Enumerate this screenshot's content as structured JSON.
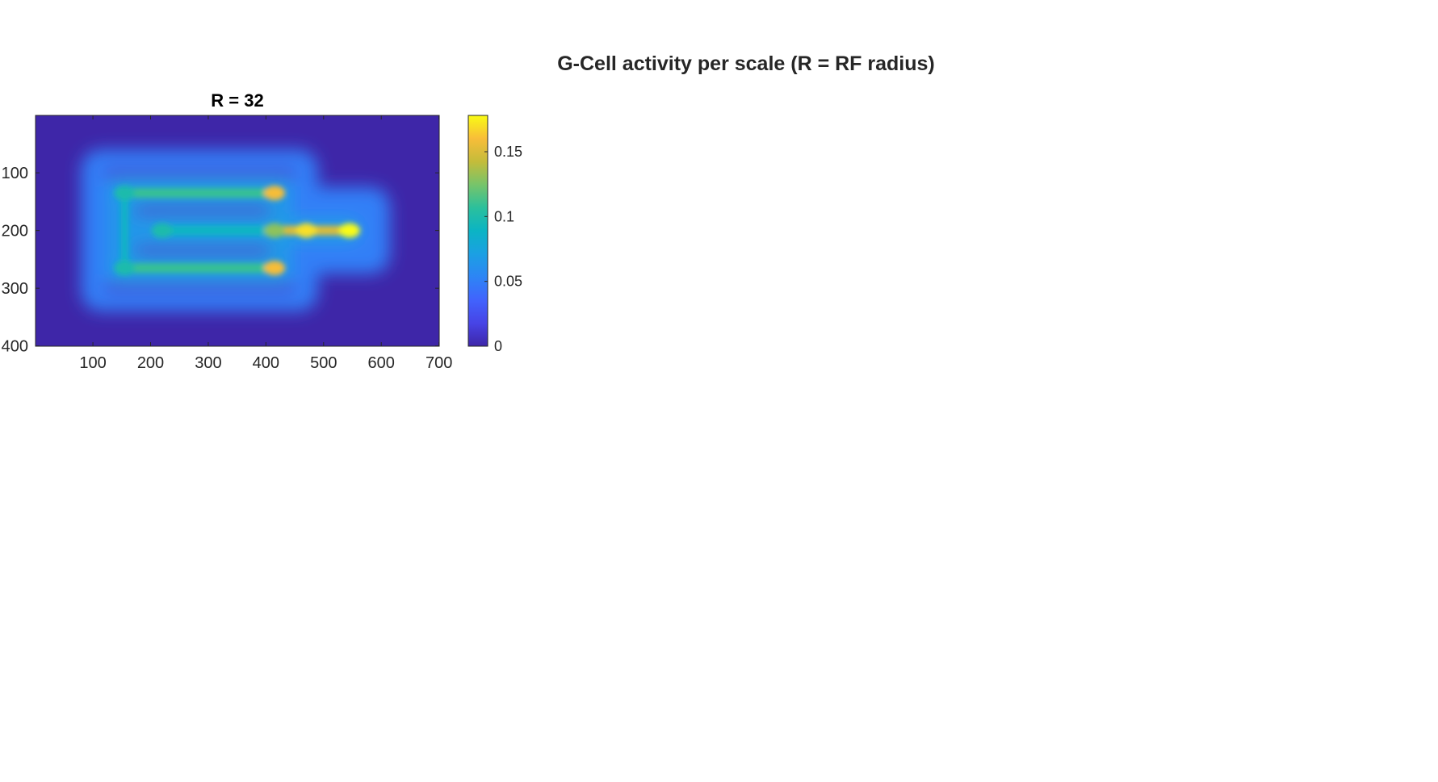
{
  "supertitle": "G-Cell activity per scale (R = RF radius)",
  "chart_data": {
    "type": "heatmap",
    "title": "R = 32",
    "xlabel": "",
    "ylabel": "",
    "xlim": [
      0.5,
      700.5
    ],
    "ylim": [
      0.5,
      400.5
    ],
    "y_reversed": true,
    "xticks": [
      100,
      200,
      300,
      400,
      500,
      600,
      700
    ],
    "yticks": [
      100,
      200,
      300,
      400
    ],
    "xtick_labels": [
      "100",
      "200",
      "300",
      "400",
      "500",
      "600",
      "700"
    ],
    "ytick_labels": [
      "100",
      "200",
      "300",
      "400"
    ],
    "colormap": "parula",
    "clim": [
      0,
      0.178
    ],
    "colorbar": {
      "ticks": [
        0,
        0.05,
        0.1,
        0.15
      ],
      "tick_labels": [
        "0",
        "0.05",
        "0.1",
        "0.15"
      ]
    },
    "structure": {
      "horizontal_lines": [
        {
          "y": 135,
          "x0": 155,
          "x1": 415,
          "value": 0.11
        },
        {
          "y": 200,
          "x0": 220,
          "x1": 415,
          "value": 0.09
        },
        {
          "y": 265,
          "x0": 155,
          "x1": 415,
          "value": 0.11
        },
        {
          "y": 200,
          "x0": 415,
          "x1": 545,
          "value": 0.15
        }
      ],
      "vertical_lines": [
        {
          "x": 155,
          "y0": 135,
          "y1": 265,
          "value": 0.09
        }
      ],
      "hotspots": [
        {
          "x": 415,
          "y": 135,
          "value": 0.16
        },
        {
          "x": 415,
          "y": 265,
          "value": 0.16
        },
        {
          "x": 415,
          "y": 200,
          "value": 0.13
        },
        {
          "x": 470,
          "y": 200,
          "value": 0.17
        },
        {
          "x": 545,
          "y": 200,
          "value": 0.178
        },
        {
          "x": 155,
          "y": 135,
          "value": 0.1
        },
        {
          "x": 155,
          "y": 265,
          "value": 0.1
        },
        {
          "x": 220,
          "y": 200,
          "value": 0.1
        }
      ],
      "halo_outer_rects": [
        {
          "x0": 80,
          "x1": 490,
          "y0": 60,
          "y1": 340,
          "value": 0.05
        },
        {
          "x0": 460,
          "x1": 615,
          "y0": 125,
          "y1": 275,
          "value": 0.05
        }
      ],
      "halo_rings": [
        {
          "x0": 125,
          "x1": 445,
          "y0": 100,
          "y1": 300,
          "value": 0.065
        }
      ],
      "dark_channels": [
        {
          "y": 100,
          "x0": 125,
          "x1": 445
        },
        {
          "y": 300,
          "x0": 125,
          "x1": 445
        },
        {
          "y": 165,
          "x0": 180,
          "x1": 400
        },
        {
          "y": 235,
          "x0": 180,
          "x1": 400
        }
      ]
    }
  }
}
